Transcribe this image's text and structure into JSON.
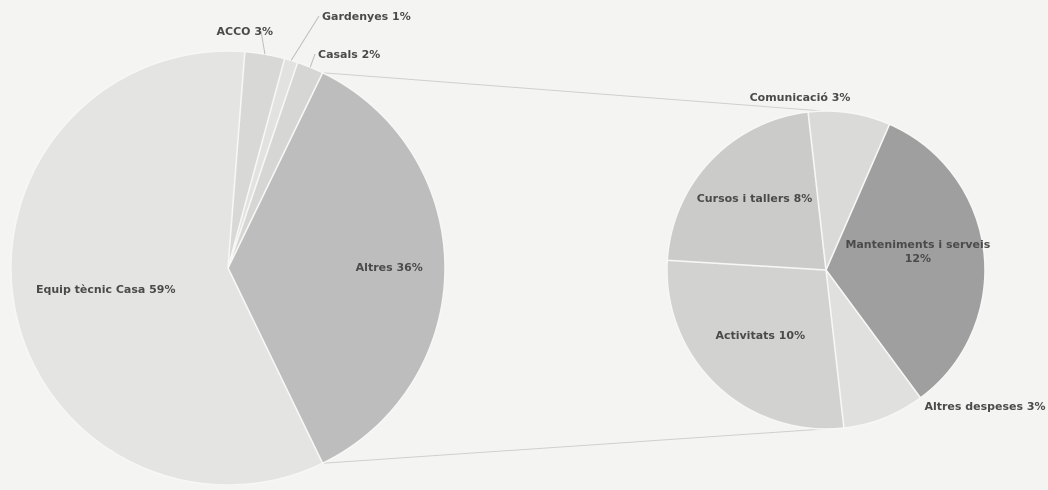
{
  "chart_data": {
    "type": "pie",
    "subtype": "pie-of-pie",
    "title": "",
    "background": "#f4f4f3",
    "main_pie": {
      "slices": [
        {
          "label": "Altres",
          "value": 36,
          "display": "Altres 36%",
          "color": "#bdbdbd"
        },
        {
          "label": "Equip tècnic Casa",
          "value": 59,
          "display": "Equip tècnic Casa 59%",
          "color": "#e4e4e3"
        },
        {
          "label": "ACCO",
          "value": 3,
          "display": "ACCO 3%",
          "color": "#d8d8d6"
        },
        {
          "label": "Gardenyes",
          "value": 1,
          "display": "Gardenyes 1%",
          "color": "#e2e2e0"
        },
        {
          "label": "Casals",
          "value": 2,
          "display": "Casals 2%",
          "color": "#d6d6d4"
        }
      ]
    },
    "secondary_pie": {
      "source": "Altres",
      "slices": [
        {
          "label": "Manteniments i serveis",
          "value": 12,
          "display_lines": [
            "Manteniments i serveis",
            "12%"
          ],
          "color": "#9f9f9f"
        },
        {
          "label": "Altres despeses",
          "value": 3,
          "display_lines": [
            "Altres despeses 3%"
          ],
          "color": "#e0e0de"
        },
        {
          "label": "Activitats",
          "value": 10,
          "display_lines": [
            "Activitats 10%"
          ],
          "color": "#d2d2d0"
        },
        {
          "label": "Cursos i tallers",
          "value": 8,
          "display_lines": [
            "Cursos i tallers 8%"
          ],
          "color": "#cbcbc9"
        },
        {
          "label": "Comunicació",
          "value": 3,
          "display_lines": [
            "Comunicació 3%"
          ],
          "color": "#dadad8"
        }
      ]
    }
  }
}
